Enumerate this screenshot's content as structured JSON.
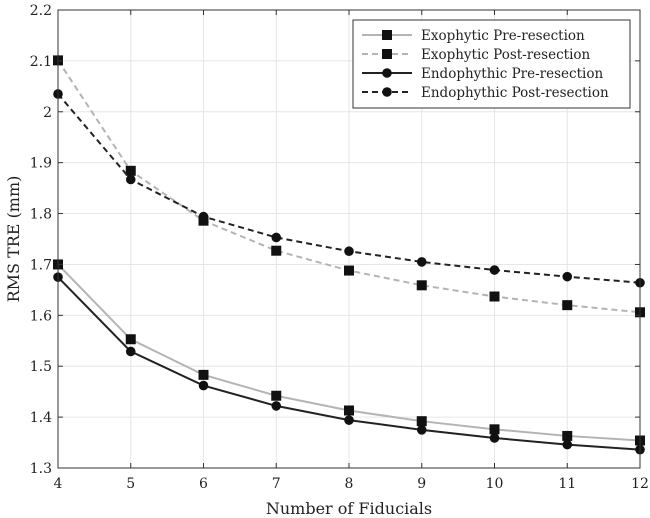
{
  "chart_data": {
    "type": "line",
    "title": "",
    "xlabel": "Number of Fiducials",
    "ylabel": "RMS TRE (mm)",
    "x": [
      4,
      5,
      6,
      7,
      8,
      9,
      10,
      11,
      12
    ],
    "xlim": [
      4,
      12
    ],
    "ylim": [
      1.3,
      2.2
    ],
    "xticks": [
      "4",
      "5",
      "6",
      "7",
      "8",
      "9",
      "10",
      "11",
      "12"
    ],
    "yticks": [
      "1.3",
      "1.4",
      "1.5",
      "1.6",
      "1.7",
      "1.8",
      "1.9",
      "2",
      "2.1",
      "2.2"
    ],
    "grid": true,
    "legend_position": "top-right",
    "series": [
      {
        "name": "Exophytic Pre-resection",
        "marker": "square",
        "line_style": "solid",
        "color": "#b4b4b4",
        "values": [
          1.7,
          1.553,
          1.483,
          1.442,
          1.413,
          1.392,
          1.376,
          1.363,
          1.354
        ]
      },
      {
        "name": "Exophytic Post-resection",
        "marker": "square",
        "line_style": "dashed",
        "color": "#b4b4b4",
        "values": [
          2.101,
          1.884,
          1.786,
          1.727,
          1.688,
          1.659,
          1.637,
          1.62,
          1.606
        ]
      },
      {
        "name": "Endophythic Pre-resection",
        "marker": "circle",
        "line_style": "solid",
        "color": "#222222",
        "values": [
          1.675,
          1.529,
          1.462,
          1.422,
          1.394,
          1.375,
          1.359,
          1.346,
          1.336
        ]
      },
      {
        "name": "Endophythic Post-resection",
        "marker": "circle",
        "line_style": "dashed",
        "color": "#222222",
        "values": [
          2.035,
          1.867,
          1.794,
          1.753,
          1.726,
          1.705,
          1.689,
          1.676,
          1.664
        ]
      }
    ]
  }
}
